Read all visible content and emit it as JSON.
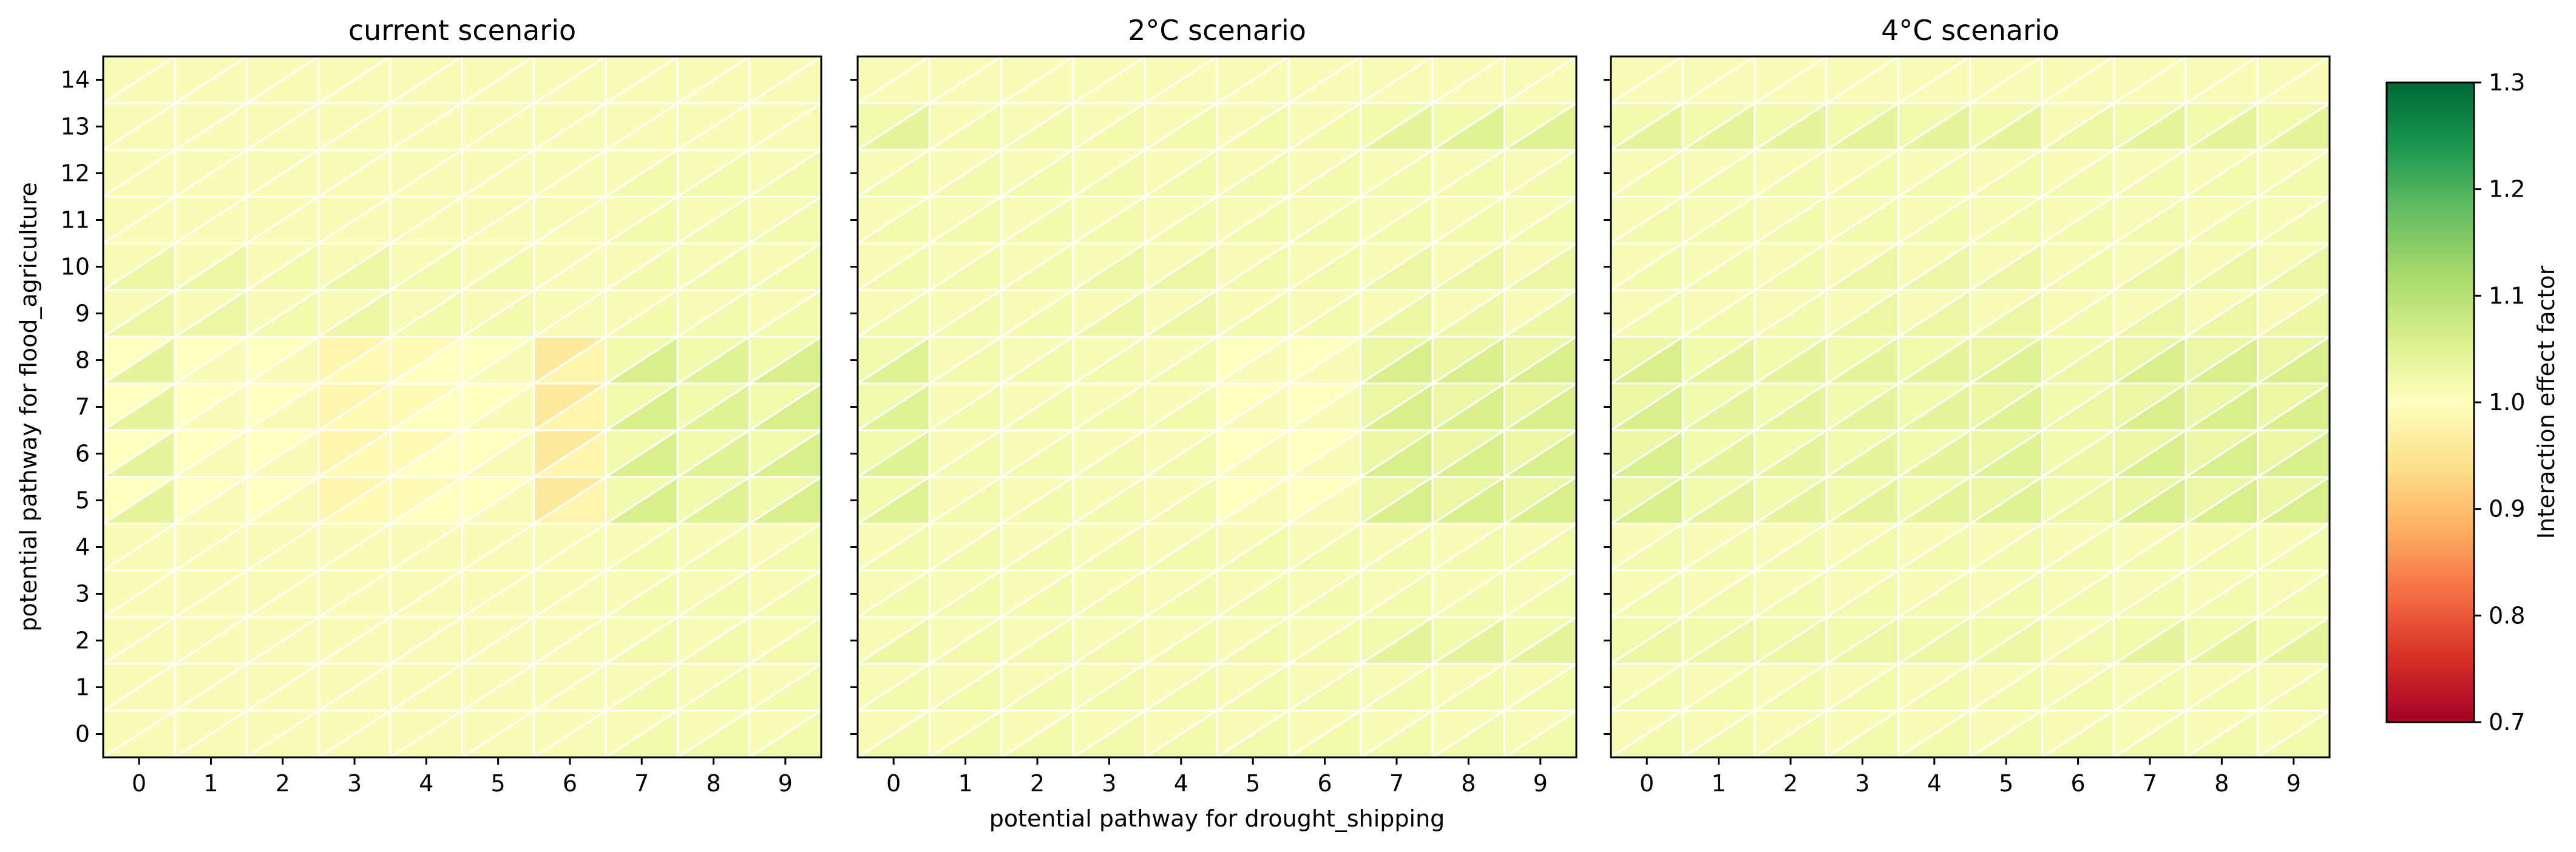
{
  "chart_data": [
    {
      "type": "heatmap",
      "title": "current scenario",
      "xlabel": "",
      "ylabel": "potential pathway for flood_agriculture",
      "x_categories": [
        "0",
        "1",
        "2",
        "3",
        "4",
        "5",
        "6",
        "7",
        "8",
        "9"
      ],
      "y_categories": [
        "0",
        "1",
        "2",
        "3",
        "4",
        "5",
        "6",
        "7",
        "8",
        "9",
        "10",
        "11",
        "12",
        "13",
        "14"
      ],
      "cell_shape": "each cell split diagonally into lower-left and upper-right triangles",
      "colormap": "RdYlGn",
      "vrange": [
        0.7,
        1.3
      ],
      "values_lower": [
        [
          1.01,
          1.01,
          1.01,
          1.01,
          1.01,
          1.01,
          1.01,
          1.02,
          1.02,
          1.02
        ],
        [
          1.01,
          1.01,
          1.01,
          1.01,
          1.01,
          1.01,
          1.01,
          1.02,
          1.02,
          1.02
        ],
        [
          1.01,
          1.01,
          1.01,
          1.01,
          1.01,
          1.01,
          1.01,
          1.02,
          1.02,
          1.02
        ],
        [
          1.01,
          1.01,
          1.01,
          1.01,
          1.01,
          1.01,
          1.01,
          1.02,
          1.02,
          1.02
        ],
        [
          1.01,
          1.01,
          1.01,
          1.01,
          1.01,
          1.01,
          1.01,
          1.02,
          1.02,
          1.02
        ],
        [
          1.04,
          1.01,
          1.01,
          0.99,
          1.0,
          1.01,
          0.98,
          1.06,
          1.05,
          1.06
        ],
        [
          1.04,
          1.01,
          1.01,
          0.99,
          1.0,
          1.01,
          0.98,
          1.06,
          1.05,
          1.06
        ],
        [
          1.04,
          1.01,
          1.01,
          0.99,
          1.0,
          1.01,
          0.98,
          1.06,
          1.05,
          1.06
        ],
        [
          1.04,
          1.01,
          1.01,
          0.99,
          1.0,
          1.01,
          0.98,
          1.06,
          1.05,
          1.06
        ],
        [
          1.03,
          1.03,
          1.02,
          1.03,
          1.02,
          1.02,
          1.01,
          1.02,
          1.02,
          1.02
        ],
        [
          1.03,
          1.03,
          1.02,
          1.03,
          1.02,
          1.02,
          1.01,
          1.02,
          1.02,
          1.02
        ],
        [
          1.01,
          1.01,
          1.01,
          1.01,
          1.01,
          1.01,
          1.01,
          1.02,
          1.02,
          1.02
        ],
        [
          1.01,
          1.01,
          1.01,
          1.01,
          1.01,
          1.01,
          1.01,
          1.02,
          1.02,
          1.02
        ],
        [
          1.01,
          1.01,
          1.01,
          1.01,
          1.01,
          1.01,
          1.01,
          1.01,
          1.01,
          1.01
        ],
        [
          1.01,
          1.01,
          1.01,
          1.01,
          1.01,
          1.01,
          1.01,
          1.01,
          1.01,
          1.01
        ]
      ],
      "values_upper": [
        [
          1.01,
          1.01,
          1.01,
          1.01,
          1.01,
          1.01,
          1.01,
          1.01,
          1.01,
          1.01
        ],
        [
          1.01,
          1.01,
          1.01,
          1.01,
          1.01,
          1.01,
          1.01,
          1.01,
          1.01,
          1.01
        ],
        [
          1.01,
          1.01,
          1.01,
          1.01,
          1.01,
          1.01,
          1.01,
          1.01,
          1.01,
          1.01
        ],
        [
          1.01,
          1.01,
          1.01,
          1.01,
          1.01,
          1.01,
          1.01,
          1.01,
          1.01,
          1.01
        ],
        [
          1.01,
          1.01,
          1.01,
          1.01,
          1.01,
          1.01,
          1.01,
          1.01,
          1.01,
          1.01
        ],
        [
          1.0,
          1.0,
          1.0,
          0.98,
          0.99,
          1.0,
          0.96,
          1.02,
          1.02,
          1.02
        ],
        [
          1.0,
          1.0,
          1.0,
          0.98,
          0.99,
          1.0,
          0.96,
          1.02,
          1.02,
          1.02
        ],
        [
          1.0,
          1.0,
          1.0,
          0.98,
          0.99,
          1.0,
          0.96,
          1.02,
          1.02,
          1.02
        ],
        [
          1.0,
          1.0,
          1.0,
          0.98,
          0.99,
          1.0,
          0.96,
          1.02,
          1.02,
          1.02
        ],
        [
          1.01,
          1.01,
          1.01,
          1.01,
          1.01,
          1.01,
          1.01,
          1.01,
          1.01,
          1.01
        ],
        [
          1.01,
          1.01,
          1.01,
          1.01,
          1.01,
          1.01,
          1.01,
          1.01,
          1.01,
          1.01
        ],
        [
          1.01,
          1.01,
          1.01,
          1.01,
          1.01,
          1.01,
          1.01,
          1.01,
          1.01,
          1.01
        ],
        [
          1.01,
          1.01,
          1.01,
          1.01,
          1.01,
          1.01,
          1.01,
          1.01,
          1.01,
          1.01
        ],
        [
          1.01,
          1.01,
          1.01,
          1.01,
          1.01,
          1.01,
          1.01,
          1.01,
          1.01,
          1.01
        ],
        [
          1.01,
          1.01,
          1.01,
          1.01,
          1.01,
          1.01,
          1.01,
          1.01,
          1.01,
          1.01
        ]
      ]
    },
    {
      "type": "heatmap",
      "title": "2°C scenario",
      "xlabel": "potential pathway for drought_shipping",
      "ylabel": "",
      "x_categories": [
        "0",
        "1",
        "2",
        "3",
        "4",
        "5",
        "6",
        "7",
        "8",
        "9"
      ],
      "y_categories": [
        "0",
        "1",
        "2",
        "3",
        "4",
        "5",
        "6",
        "7",
        "8",
        "9",
        "10",
        "11",
        "12",
        "13",
        "14"
      ],
      "cell_shape": "each cell split diagonally into lower-left and upper-right triangles",
      "colormap": "RdYlGn",
      "vrange": [
        0.7,
        1.3
      ],
      "values_lower": [
        [
          1.02,
          1.02,
          1.02,
          1.02,
          1.02,
          1.02,
          1.02,
          1.02,
          1.02,
          1.02
        ],
        [
          1.02,
          1.02,
          1.02,
          1.02,
          1.02,
          1.02,
          1.02,
          1.02,
          1.02,
          1.02
        ],
        [
          1.03,
          1.02,
          1.02,
          1.02,
          1.02,
          1.02,
          1.02,
          1.04,
          1.04,
          1.04
        ],
        [
          1.02,
          1.02,
          1.02,
          1.02,
          1.02,
          1.02,
          1.02,
          1.02,
          1.02,
          1.02
        ],
        [
          1.02,
          1.02,
          1.02,
          1.02,
          1.02,
          1.02,
          1.02,
          1.02,
          1.02,
          1.02
        ],
        [
          1.05,
          1.02,
          1.02,
          1.02,
          1.02,
          1.01,
          1.01,
          1.06,
          1.06,
          1.06
        ],
        [
          1.05,
          1.02,
          1.02,
          1.02,
          1.02,
          1.01,
          1.01,
          1.06,
          1.06,
          1.06
        ],
        [
          1.05,
          1.02,
          1.02,
          1.02,
          1.02,
          1.01,
          1.01,
          1.06,
          1.06,
          1.06
        ],
        [
          1.05,
          1.02,
          1.02,
          1.02,
          1.02,
          1.01,
          1.01,
          1.06,
          1.06,
          1.06
        ],
        [
          1.02,
          1.02,
          1.02,
          1.03,
          1.03,
          1.02,
          1.02,
          1.03,
          1.03,
          1.03
        ],
        [
          1.02,
          1.02,
          1.02,
          1.03,
          1.03,
          1.02,
          1.02,
          1.03,
          1.03,
          1.03
        ],
        [
          1.02,
          1.02,
          1.02,
          1.02,
          1.02,
          1.02,
          1.02,
          1.02,
          1.02,
          1.02
        ],
        [
          1.02,
          1.02,
          1.02,
          1.02,
          1.02,
          1.02,
          1.02,
          1.02,
          1.02,
          1.02
        ],
        [
          1.04,
          1.02,
          1.02,
          1.02,
          1.02,
          1.02,
          1.02,
          1.04,
          1.05,
          1.05
        ],
        [
          1.01,
          1.01,
          1.01,
          1.01,
          1.01,
          1.01,
          1.01,
          1.01,
          1.01,
          1.01
        ]
      ],
      "values_upper": [
        [
          1.01,
          1.01,
          1.01,
          1.01,
          1.01,
          1.01,
          1.01,
          1.01,
          1.01,
          1.01
        ],
        [
          1.01,
          1.01,
          1.01,
          1.01,
          1.01,
          1.01,
          1.01,
          1.01,
          1.01,
          1.01
        ],
        [
          1.01,
          1.01,
          1.01,
          1.01,
          1.01,
          1.01,
          1.01,
          1.02,
          1.02,
          1.02
        ],
        [
          1.01,
          1.01,
          1.01,
          1.01,
          1.01,
          1.01,
          1.01,
          1.01,
          1.01,
          1.01
        ],
        [
          1.01,
          1.01,
          1.01,
          1.01,
          1.01,
          1.01,
          1.01,
          1.01,
          1.01,
          1.01
        ],
        [
          1.02,
          1.01,
          1.01,
          1.01,
          1.01,
          1.0,
          1.0,
          1.03,
          1.03,
          1.03
        ],
        [
          1.02,
          1.01,
          1.01,
          1.01,
          1.01,
          1.0,
          1.0,
          1.03,
          1.03,
          1.03
        ],
        [
          1.02,
          1.01,
          1.01,
          1.01,
          1.01,
          1.0,
          1.0,
          1.03,
          1.03,
          1.03
        ],
        [
          1.02,
          1.01,
          1.01,
          1.01,
          1.01,
          1.0,
          1.0,
          1.03,
          1.03,
          1.03
        ],
        [
          1.01,
          1.01,
          1.01,
          1.01,
          1.01,
          1.01,
          1.01,
          1.01,
          1.01,
          1.01
        ],
        [
          1.01,
          1.01,
          1.01,
          1.01,
          1.01,
          1.01,
          1.01,
          1.01,
          1.01,
          1.01
        ],
        [
          1.01,
          1.01,
          1.01,
          1.01,
          1.01,
          1.01,
          1.01,
          1.01,
          1.01,
          1.01
        ],
        [
          1.01,
          1.01,
          1.01,
          1.01,
          1.01,
          1.01,
          1.01,
          1.01,
          1.01,
          1.01
        ],
        [
          1.02,
          1.01,
          1.01,
          1.01,
          1.01,
          1.01,
          1.01,
          1.02,
          1.02,
          1.02
        ],
        [
          1.01,
          1.01,
          1.01,
          1.01,
          1.01,
          1.01,
          1.01,
          1.01,
          1.01,
          1.01
        ]
      ]
    },
    {
      "type": "heatmap",
      "title": "4°C scenario",
      "xlabel": "",
      "ylabel": "",
      "x_categories": [
        "0",
        "1",
        "2",
        "3",
        "4",
        "5",
        "6",
        "7",
        "8",
        "9"
      ],
      "y_categories": [
        "0",
        "1",
        "2",
        "3",
        "4",
        "5",
        "6",
        "7",
        "8",
        "9",
        "10",
        "11",
        "12",
        "13",
        "14"
      ],
      "cell_shape": "each cell split diagonally into lower-left and upper-right triangles",
      "colormap": "RdYlGn",
      "vrange": [
        0.7,
        1.3
      ],
      "values_lower": [
        [
          1.02,
          1.02,
          1.02,
          1.02,
          1.02,
          1.02,
          1.02,
          1.02,
          1.02,
          1.02
        ],
        [
          1.02,
          1.02,
          1.02,
          1.02,
          1.02,
          1.02,
          1.02,
          1.02,
          1.02,
          1.02
        ],
        [
          1.03,
          1.03,
          1.03,
          1.03,
          1.03,
          1.03,
          1.02,
          1.04,
          1.04,
          1.04
        ],
        [
          1.02,
          1.02,
          1.02,
          1.02,
          1.02,
          1.02,
          1.02,
          1.02,
          1.02,
          1.02
        ],
        [
          1.02,
          1.02,
          1.02,
          1.02,
          1.02,
          1.02,
          1.02,
          1.02,
          1.02,
          1.02
        ],
        [
          1.06,
          1.04,
          1.04,
          1.04,
          1.04,
          1.05,
          1.03,
          1.06,
          1.06,
          1.06
        ],
        [
          1.06,
          1.04,
          1.04,
          1.04,
          1.04,
          1.05,
          1.03,
          1.06,
          1.06,
          1.06
        ],
        [
          1.06,
          1.04,
          1.04,
          1.04,
          1.04,
          1.05,
          1.03,
          1.06,
          1.06,
          1.06
        ],
        [
          1.06,
          1.04,
          1.04,
          1.04,
          1.04,
          1.05,
          1.03,
          1.06,
          1.06,
          1.06
        ],
        [
          1.02,
          1.02,
          1.02,
          1.03,
          1.03,
          1.03,
          1.02,
          1.03,
          1.03,
          1.03
        ],
        [
          1.02,
          1.02,
          1.02,
          1.03,
          1.03,
          1.03,
          1.02,
          1.03,
          1.03,
          1.03
        ],
        [
          1.02,
          1.02,
          1.02,
          1.02,
          1.02,
          1.02,
          1.02,
          1.02,
          1.02,
          1.02
        ],
        [
          1.02,
          1.02,
          1.02,
          1.02,
          1.02,
          1.02,
          1.02,
          1.02,
          1.02,
          1.02
        ],
        [
          1.04,
          1.04,
          1.04,
          1.04,
          1.04,
          1.04,
          1.03,
          1.04,
          1.04,
          1.04
        ],
        [
          1.01,
          1.01,
          1.01,
          1.01,
          1.01,
          1.01,
          1.01,
          1.01,
          1.01,
          1.01
        ]
      ],
      "values_upper": [
        [
          1.01,
          1.01,
          1.01,
          1.01,
          1.01,
          1.01,
          1.01,
          1.01,
          1.01,
          1.01
        ],
        [
          1.01,
          1.01,
          1.01,
          1.01,
          1.01,
          1.01,
          1.01,
          1.01,
          1.01,
          1.01
        ],
        [
          1.02,
          1.02,
          1.02,
          1.02,
          1.02,
          1.02,
          1.01,
          1.02,
          1.02,
          1.02
        ],
        [
          1.01,
          1.01,
          1.01,
          1.01,
          1.01,
          1.01,
          1.01,
          1.01,
          1.01,
          1.01
        ],
        [
          1.01,
          1.01,
          1.01,
          1.01,
          1.01,
          1.01,
          1.01,
          1.01,
          1.01,
          1.01
        ],
        [
          1.03,
          1.02,
          1.02,
          1.02,
          1.02,
          1.03,
          1.02,
          1.03,
          1.03,
          1.03
        ],
        [
          1.03,
          1.02,
          1.02,
          1.02,
          1.02,
          1.03,
          1.02,
          1.03,
          1.03,
          1.03
        ],
        [
          1.03,
          1.02,
          1.02,
          1.02,
          1.02,
          1.03,
          1.02,
          1.03,
          1.03,
          1.03
        ],
        [
          1.03,
          1.02,
          1.02,
          1.02,
          1.02,
          1.03,
          1.02,
          1.03,
          1.03,
          1.03
        ],
        [
          1.01,
          1.01,
          1.01,
          1.01,
          1.01,
          1.01,
          1.01,
          1.01,
          1.01,
          1.01
        ],
        [
          1.01,
          1.01,
          1.01,
          1.01,
          1.01,
          1.01,
          1.01,
          1.01,
          1.01,
          1.01
        ],
        [
          1.01,
          1.01,
          1.01,
          1.01,
          1.01,
          1.01,
          1.01,
          1.01,
          1.01,
          1.01
        ],
        [
          1.01,
          1.01,
          1.01,
          1.01,
          1.01,
          1.01,
          1.01,
          1.01,
          1.01,
          1.01
        ],
        [
          1.02,
          1.02,
          1.02,
          1.02,
          1.02,
          1.02,
          1.01,
          1.02,
          1.02,
          1.02
        ],
        [
          1.01,
          1.01,
          1.01,
          1.01,
          1.01,
          1.01,
          1.01,
          1.01,
          1.01,
          1.01
        ]
      ]
    }
  ],
  "colorbar": {
    "label": "Interaction effect factor",
    "ticks": [
      "0.7",
      "0.8",
      "0.9",
      "1.0",
      "1.1",
      "1.2",
      "1.3"
    ],
    "range": [
      0.7,
      1.3
    ],
    "colormap": "RdYlGn"
  }
}
